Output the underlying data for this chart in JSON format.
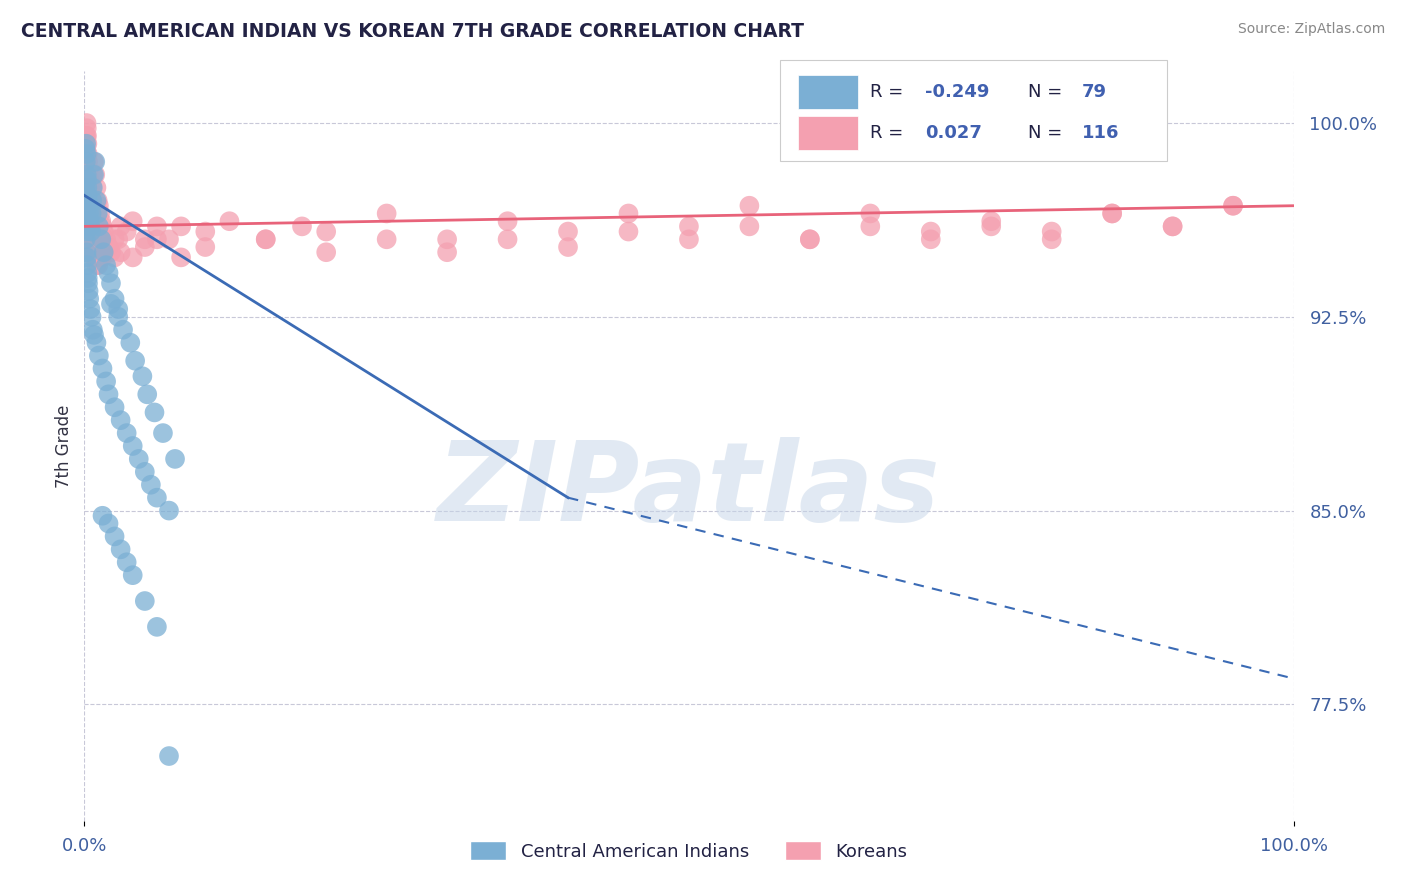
{
  "title": "CENTRAL AMERICAN INDIAN VS KOREAN 7TH GRADE CORRELATION CHART",
  "source": "Source: ZipAtlas.com",
  "ylabel": "7th Grade",
  "xlim": [
    0.0,
    100.0
  ],
  "ylim": [
    73.0,
    102.0
  ],
  "yticks": [
    77.5,
    85.0,
    92.5,
    100.0
  ],
  "ytick_labels": [
    "77.5%",
    "85.0%",
    "92.5%",
    "100.0%"
  ],
  "xticks": [
    0.0,
    100.0
  ],
  "xtick_labels": [
    "0.0%",
    "100.0%"
  ],
  "legend_r_blue": "-0.249",
  "legend_n_blue": "79",
  "legend_r_pink": "0.027",
  "legend_n_pink": "116",
  "blue_color": "#7BAFD4",
  "pink_color": "#F4A0B0",
  "blue_line_color": "#3B6BB5",
  "pink_line_color": "#E8637A",
  "watermark": "ZIPatlas",
  "watermark_color": "#C5D5E8",
  "background_color": "#FFFFFF",
  "grid_color": "#C8C8D8",
  "blue_scatter_x": [
    0.08,
    0.1,
    0.12,
    0.15,
    0.18,
    0.2,
    0.22,
    0.25,
    0.28,
    0.3,
    0.35,
    0.4,
    0.45,
    0.5,
    0.55,
    0.6,
    0.65,
    0.7,
    0.8,
    0.9,
    1.0,
    1.1,
    1.2,
    1.4,
    1.6,
    1.8,
    2.0,
    2.2,
    2.5,
    2.8,
    0.08,
    0.1,
    0.12,
    0.15,
    0.18,
    0.2,
    0.22,
    0.25,
    0.28,
    0.3,
    0.35,
    0.4,
    0.5,
    0.6,
    0.7,
    0.8,
    1.0,
    1.2,
    1.5,
    1.8,
    2.0,
    2.5,
    3.0,
    3.5,
    4.0,
    4.5,
    5.0,
    5.5,
    6.0,
    7.0,
    2.2,
    2.8,
    3.2,
    3.8,
    4.2,
    4.8,
    5.2,
    5.8,
    6.5,
    7.5,
    1.5,
    2.0,
    2.5,
    3.0,
    3.5,
    4.0,
    5.0,
    6.0,
    7.0
  ],
  "blue_scatter_y": [
    97.5,
    99.0,
    98.5,
    99.2,
    98.8,
    98.0,
    97.8,
    97.5,
    97.2,
    97.0,
    96.8,
    96.5,
    96.2,
    96.0,
    95.8,
    96.5,
    97.0,
    97.5,
    98.0,
    98.5,
    97.0,
    96.5,
    96.0,
    95.5,
    95.0,
    94.5,
    94.2,
    93.8,
    93.2,
    92.8,
    96.0,
    95.5,
    95.8,
    96.2,
    95.0,
    94.8,
    94.5,
    94.2,
    94.0,
    93.8,
    93.5,
    93.2,
    92.8,
    92.5,
    92.0,
    91.8,
    91.5,
    91.0,
    90.5,
    90.0,
    89.5,
    89.0,
    88.5,
    88.0,
    87.5,
    87.0,
    86.5,
    86.0,
    85.5,
    85.0,
    93.0,
    92.5,
    92.0,
    91.5,
    90.8,
    90.2,
    89.5,
    88.8,
    88.0,
    87.0,
    84.8,
    84.5,
    84.0,
    83.5,
    83.0,
    82.5,
    81.5,
    80.5,
    75.5
  ],
  "pink_scatter_x": [
    0.05,
    0.08,
    0.1,
    0.12,
    0.15,
    0.18,
    0.2,
    0.22,
    0.25,
    0.28,
    0.3,
    0.35,
    0.4,
    0.45,
    0.5,
    0.55,
    0.6,
    0.65,
    0.7,
    0.8,
    0.9,
    1.0,
    1.1,
    1.2,
    1.3,
    1.4,
    1.5,
    1.6,
    1.8,
    2.0,
    2.2,
    2.5,
    2.8,
    3.0,
    3.5,
    4.0,
    5.0,
    6.0,
    7.0,
    8.0,
    10.0,
    12.0,
    15.0,
    18.0,
    20.0,
    25.0,
    30.0,
    35.0,
    40.0,
    45.0,
    50.0,
    55.0,
    60.0,
    65.0,
    70.0,
    75.0,
    80.0,
    85.0,
    90.0,
    95.0,
    0.05,
    0.08,
    0.1,
    0.15,
    0.2,
    0.25,
    0.3,
    0.4,
    0.5,
    0.6,
    0.7,
    0.8,
    1.0,
    1.2,
    1.5,
    2.0,
    2.5,
    3.0,
    4.0,
    5.0,
    6.0,
    8.0,
    10.0,
    15.0,
    20.0,
    25.0,
    30.0,
    35.0,
    40.0,
    45.0,
    50.0,
    55.0,
    60.0,
    65.0,
    70.0,
    75.0,
    80.0,
    85.0,
    90.0,
    95.0,
    0.12,
    0.18,
    0.22,
    0.28,
    0.35,
    0.45,
    0.55,
    0.65,
    0.75,
    0.85,
    0.95,
    1.05,
    1.15,
    1.25,
    1.35,
    1.45
  ],
  "pink_scatter_y": [
    99.5,
    99.2,
    98.8,
    99.0,
    99.5,
    100.0,
    99.8,
    99.5,
    99.2,
    98.8,
    98.5,
    98.0,
    97.8,
    97.5,
    97.2,
    97.0,
    96.8,
    97.5,
    98.0,
    98.5,
    98.0,
    97.5,
    97.0,
    96.8,
    96.5,
    96.2,
    96.0,
    95.8,
    95.5,
    95.2,
    95.0,
    94.8,
    95.5,
    96.0,
    95.8,
    96.2,
    95.5,
    96.0,
    95.5,
    96.0,
    95.8,
    96.2,
    95.5,
    96.0,
    95.8,
    96.5,
    95.5,
    96.2,
    95.8,
    96.5,
    96.0,
    96.8,
    95.5,
    96.5,
    95.8,
    96.0,
    95.5,
    96.5,
    96.0,
    96.8,
    98.2,
    98.5,
    97.8,
    97.5,
    97.2,
    96.8,
    96.5,
    96.0,
    95.8,
    95.5,
    95.0,
    94.8,
    94.5,
    95.0,
    94.8,
    95.2,
    95.5,
    95.0,
    94.8,
    95.2,
    95.5,
    94.8,
    95.2,
    95.5,
    95.0,
    95.5,
    95.0,
    95.5,
    95.2,
    95.8,
    95.5,
    96.0,
    95.5,
    96.0,
    95.5,
    96.2,
    95.8,
    96.5,
    96.0,
    96.8,
    98.0,
    97.5,
    97.2,
    96.8,
    96.5,
    96.0,
    95.8,
    95.5,
    95.2,
    95.0,
    94.8,
    95.2,
    94.5,
    95.0,
    94.8,
    95.5
  ],
  "blue_reg_x0": 0.0,
  "blue_reg_y0": 97.2,
  "blue_reg_x1": 40.0,
  "blue_reg_y1": 85.5,
  "blue_reg_x2": 100.0,
  "blue_reg_y2": 78.5,
  "pink_reg_x0": 0.0,
  "pink_reg_y0": 96.0,
  "pink_reg_x1": 100.0,
  "pink_reg_y1": 96.8
}
